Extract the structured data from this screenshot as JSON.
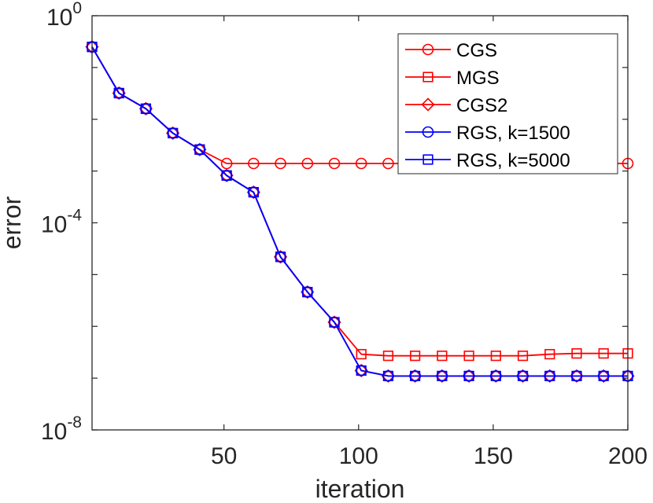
{
  "chart_data": {
    "type": "line",
    "xlabel": "iteration",
    "ylabel": "error",
    "xlim": [
      1,
      200
    ],
    "ylim": [
      1e-08,
      1
    ],
    "yscale": "log",
    "x_ticks": [
      50,
      100,
      150,
      200
    ],
    "y_ticks": [
      {
        "value": 1,
        "base": "10",
        "exp": "0"
      },
      {
        "value": 0.0001,
        "base": "10",
        "exp": "-4"
      },
      {
        "value": 1e-08,
        "base": "10",
        "exp": "-8"
      }
    ],
    "grid": false,
    "legend_position": "top-right",
    "x": [
      1,
      11,
      21,
      31,
      41,
      51,
      61,
      71,
      81,
      91,
      101,
      111,
      121,
      131,
      141,
      151,
      161,
      171,
      181,
      191,
      200
    ],
    "series": [
      {
        "name": "CGS",
        "color": "#ff0000",
        "marker": "circle",
        "values": [
          0.25,
          0.032,
          0.016,
          0.0054,
          0.0026,
          0.0014,
          0.0014,
          0.0014,
          0.0014,
          0.0014,
          0.0014,
          0.0014,
          0.0014,
          0.0014,
          0.0014,
          0.0014,
          0.0014,
          0.0014,
          0.0014,
          0.0014,
          0.0014
        ]
      },
      {
        "name": "MGS",
        "color": "#ff0000",
        "marker": "square",
        "values": [
          0.25,
          0.032,
          0.016,
          0.0054,
          0.0026,
          0.00082,
          0.00039,
          2.2e-05,
          4.6e-06,
          1.2e-06,
          2.9e-07,
          2.7e-07,
          2.7e-07,
          2.7e-07,
          2.7e-07,
          2.7e-07,
          2.7e-07,
          2.9e-07,
          3e-07,
          3e-07,
          3e-07
        ]
      },
      {
        "name": "CGS2",
        "color": "#ff0000",
        "marker": "diamond",
        "values": [
          0.25,
          0.032,
          0.016,
          0.0054,
          0.0026,
          0.00082,
          0.00039,
          2.2e-05,
          4.6e-06,
          1.2e-06,
          1.4e-07,
          1.1e-07,
          1.1e-07,
          1.1e-07,
          1.1e-07,
          1.1e-07,
          1.1e-07,
          1.1e-07,
          1.1e-07,
          1.1e-07,
          1.1e-07
        ]
      },
      {
        "name": "RGS, k=1500",
        "color": "#0000ff",
        "marker": "circle",
        "values": [
          0.25,
          0.032,
          0.016,
          0.0054,
          0.0026,
          0.00082,
          0.00039,
          2.2e-05,
          4.6e-06,
          1.2e-06,
          1.4e-07,
          1.1e-07,
          1.1e-07,
          1.1e-07,
          1.1e-07,
          1.1e-07,
          1.1e-07,
          1.1e-07,
          1.1e-07,
          1.1e-07,
          1.1e-07
        ]
      },
      {
        "name": "RGS, k=5000",
        "color": "#0000ff",
        "marker": "square",
        "values": [
          0.25,
          0.032,
          0.016,
          0.0054,
          0.0026,
          0.00082,
          0.00039,
          2.2e-05,
          4.6e-06,
          1.2e-06,
          1.4e-07,
          1.1e-07,
          1.1e-07,
          1.1e-07,
          1.1e-07,
          1.1e-07,
          1.1e-07,
          1.1e-07,
          1.1e-07,
          1.1e-07,
          1.1e-07
        ]
      }
    ]
  }
}
